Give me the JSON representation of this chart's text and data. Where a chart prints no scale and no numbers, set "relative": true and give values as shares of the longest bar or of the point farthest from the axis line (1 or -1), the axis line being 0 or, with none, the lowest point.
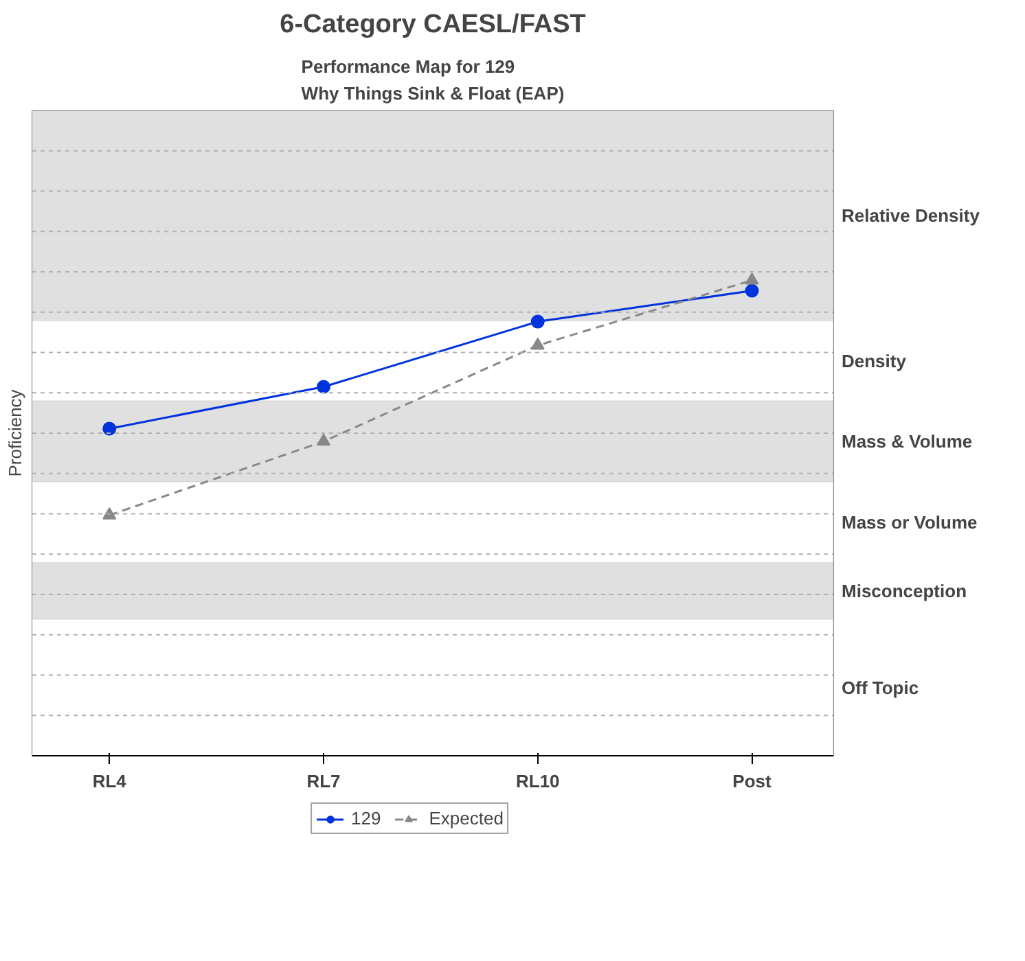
{
  "chart_data": {
    "type": "line",
    "title": "6-Category CAESL/FAST",
    "subtitle": "Performance Map for 129\nWhy Things Sink & Float (EAP)",
    "ylabel": "Proficiency",
    "relative": true,
    "categories": [
      "RL4",
      "RL7",
      "RL10",
      "Post"
    ],
    "series": [
      {
        "name": "129",
        "color": "#0033dd",
        "values": [
          0.688,
          0.776,
          0.913,
          0.978
        ],
        "marker": "circle",
        "line_style": "solid"
      },
      {
        "name": "Expected",
        "color": "#888888",
        "values": [
          0.506,
          0.661,
          0.863,
          1.0
        ],
        "marker": "triangle",
        "line_style": "dashed"
      }
    ],
    "bands": [
      {
        "axis": "y",
        "from": 0.915,
        "to": 1.357,
        "label": "Relative Density",
        "color": "#e0e0e0"
      },
      {
        "axis": "y",
        "from": 0.746,
        "to": 0.915,
        "label": "Density",
        "color": "#ffffff"
      },
      {
        "axis": "y",
        "from": 0.576,
        "to": 0.746,
        "label": "Mass & Volume",
        "color": "#e0e0e0"
      },
      {
        "axis": "y",
        "from": 0.406,
        "to": 0.576,
        "label": "Mass or Volume",
        "color": "#ffffff"
      },
      {
        "axis": "y",
        "from": 0.287,
        "to": 0.406,
        "label": "Misconception",
        "color": "#e0e0e0"
      },
      {
        "axis": "y",
        "from": 0.0,
        "to": 0.287,
        "label": "Off Topic",
        "color": "#ffffff"
      }
    ],
    "grid": true,
    "legend": "bottom"
  }
}
